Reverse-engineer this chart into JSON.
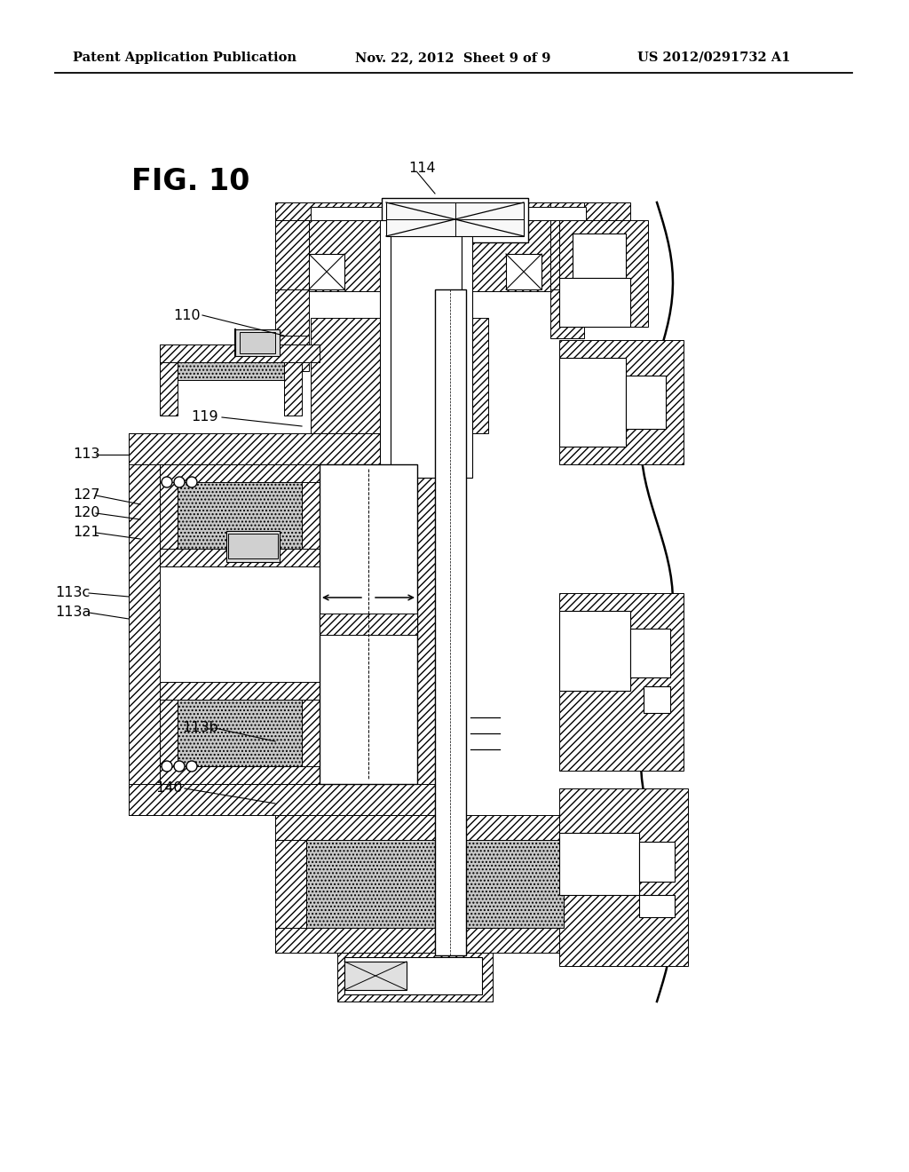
{
  "bg_color": "#ffffff",
  "header_left": "Patent Application Publication",
  "header_center": "Nov. 22, 2012  Sheet 9 of 9",
  "header_right": "US 2012/0291732 A1",
  "fig_label": "FIG. 10"
}
